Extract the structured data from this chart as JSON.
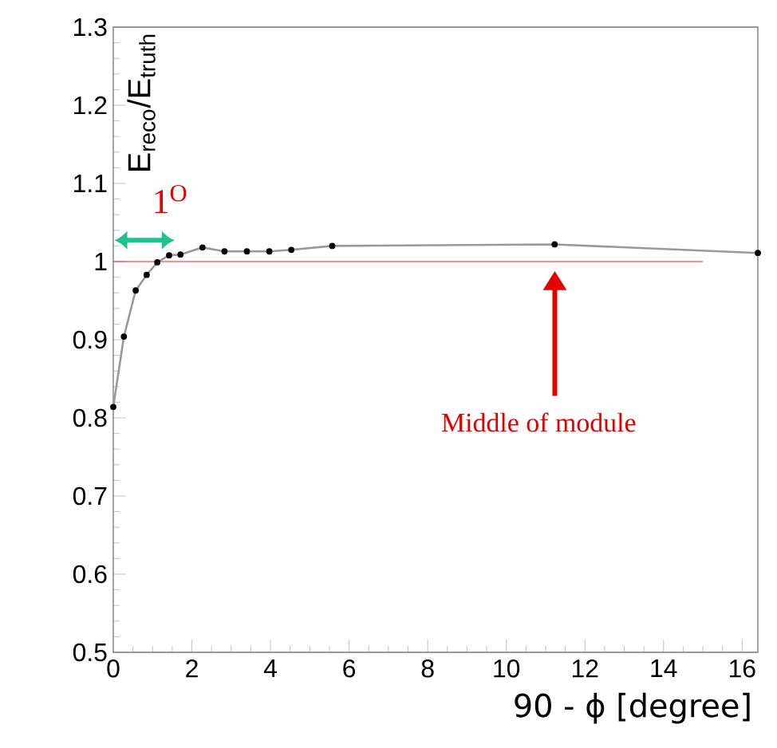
{
  "chart_data": {
    "type": "line",
    "xlabel": "90 - ϕ [degree]",
    "ylabel": "E$_{reco}$/E$_{truth}$",
    "xlim": [
      0,
      16.4
    ],
    "ylim": [
      0.5,
      1.3
    ],
    "xticks": [
      0,
      2,
      4,
      6,
      8,
      10,
      12,
      14,
      16
    ],
    "yticks": [
      0.5,
      0.6,
      0.7,
      0.8,
      0.9,
      1,
      1.1,
      1.2,
      1.3
    ],
    "marker": "circle",
    "series": [
      {
        "color": "#999999",
        "x": [
          0,
          0.27,
          0.57,
          0.85,
          1.12,
          1.42,
          1.71,
          2.27,
          2.83,
          3.4,
          3.97,
          4.53,
          5.57,
          11.23,
          16.4
        ],
        "values": [
          0.814,
          0.904,
          0.963,
          0.983,
          0.999,
          1.008,
          1.009,
          1.018,
          1.013,
          1.013,
          1.013,
          1.015,
          1.02,
          1.022,
          1.011
        ]
      },
      {
        "type": "line",
        "marker": "none",
        "color": "#ff2020",
        "x": [
          0,
          15
        ],
        "values": [
          1,
          1
        ]
      }
    ],
    "annotations": [
      "1$^{O}$",
      "Middle of module"
    ]
  }
}
